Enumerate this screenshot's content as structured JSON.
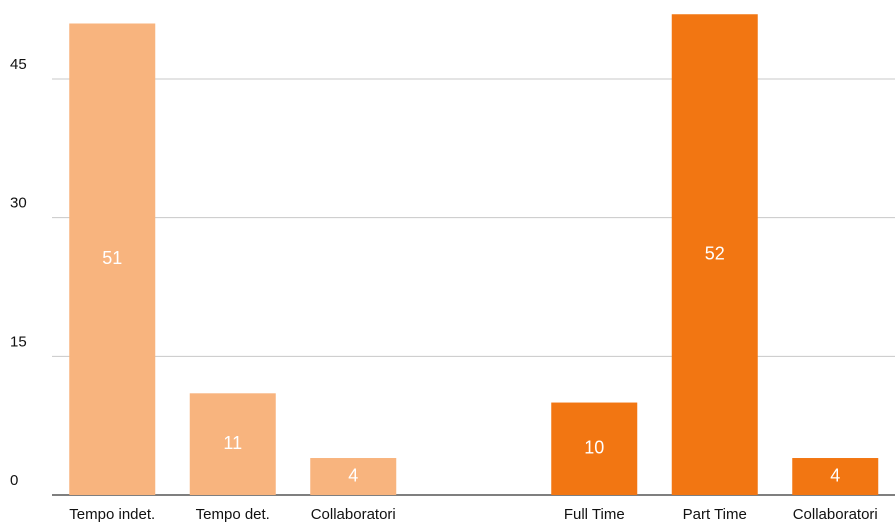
{
  "chart_data": {
    "type": "bar",
    "categories": [
      "Tempo indet.",
      "Tempo det.",
      "Collaboratori",
      null,
      "Full Time",
      "Part Time",
      "Collaboratori"
    ],
    "values": [
      51,
      11,
      4,
      null,
      10,
      52,
      4
    ],
    "colors": [
      "#f8b47e",
      "#f8b47e",
      "#f8b47e",
      null,
      "#f27612",
      "#f27612",
      "#f27612"
    ],
    "ylim": [
      0,
      53
    ],
    "yticks": [
      0,
      15,
      30,
      45
    ],
    "grid": true
  }
}
